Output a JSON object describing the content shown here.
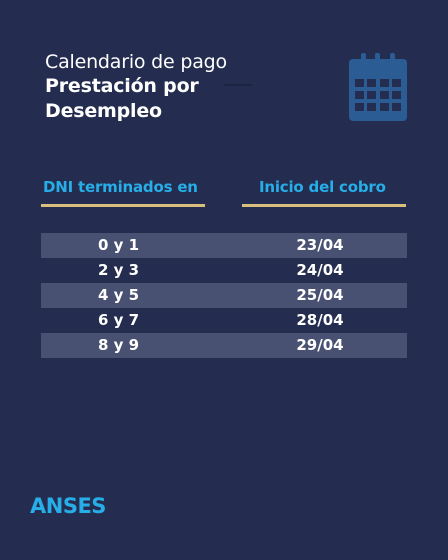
{
  "header": {
    "subtitle": "Calendario de pago",
    "title_line1": "Prestación por",
    "title_line2": "Desempleo",
    "icon": "calendar-icon"
  },
  "table": {
    "col_dni": "DNI terminados en",
    "col_fecha": "Inicio del cobro",
    "rows": [
      {
        "dni": "0 y 1",
        "fecha": "23/04"
      },
      {
        "dni": "2 y 3",
        "fecha": "24/04"
      },
      {
        "dni": "4 y 5",
        "fecha": "25/04"
      },
      {
        "dni": "6 y 7",
        "fecha": "28/04"
      },
      {
        "dni": "8 y 9",
        "fecha": "29/04"
      }
    ]
  },
  "footer": {
    "brand": "ANSES"
  },
  "colors": {
    "background": "#242d4f",
    "accent_blue": "#27aee8",
    "accent_gold": "#d9bf7e",
    "row_shade": "#495172",
    "icon_blue": "#2c5c94"
  }
}
